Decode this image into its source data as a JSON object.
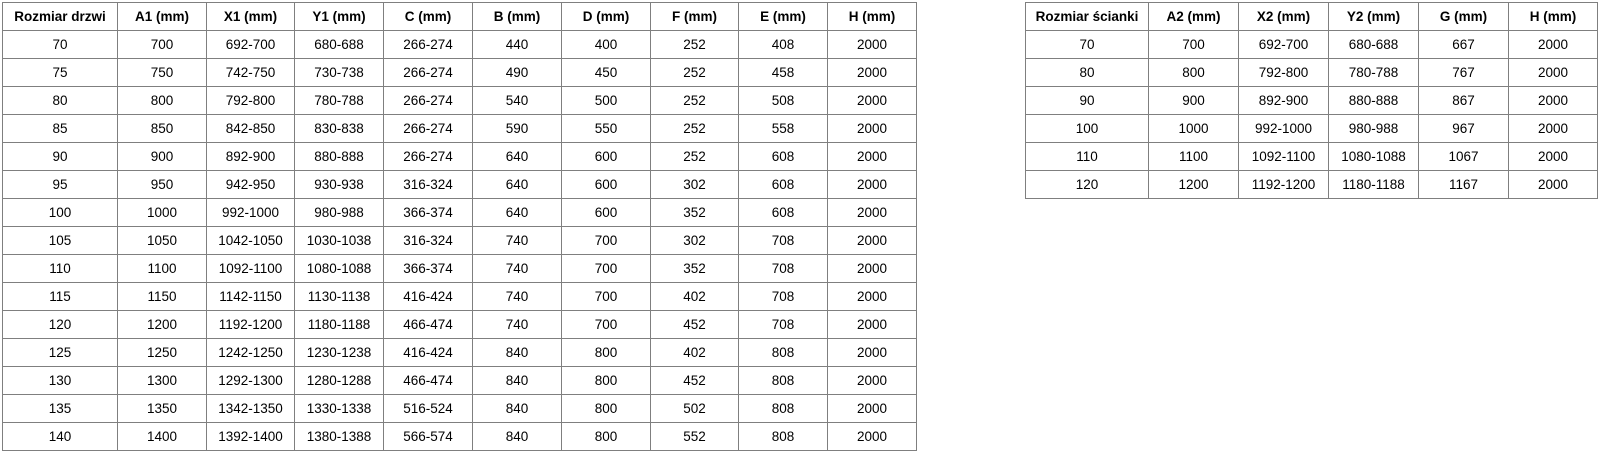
{
  "colors": {
    "background": "#ffffff",
    "border": "#7f7f7f",
    "text": "#000000"
  },
  "door_table": {
    "headers": [
      "Rozmiar drzwi",
      "A1 (mm)",
      "X1 (mm)",
      "Y1 (mm)",
      "C (mm)",
      "B (mm)",
      "D (mm)",
      "F (mm)",
      "E (mm)",
      "H (mm)"
    ],
    "rows": [
      [
        "70",
        "700",
        "692-700",
        "680-688",
        "266-274",
        "440",
        "400",
        "252",
        "408",
        "2000"
      ],
      [
        "75",
        "750",
        "742-750",
        "730-738",
        "266-274",
        "490",
        "450",
        "252",
        "458",
        "2000"
      ],
      [
        "80",
        "800",
        "792-800",
        "780-788",
        "266-274",
        "540",
        "500",
        "252",
        "508",
        "2000"
      ],
      [
        "85",
        "850",
        "842-850",
        "830-838",
        "266-274",
        "590",
        "550",
        "252",
        "558",
        "2000"
      ],
      [
        "90",
        "900",
        "892-900",
        "880-888",
        "266-274",
        "640",
        "600",
        "252",
        "608",
        "2000"
      ],
      [
        "95",
        "950",
        "942-950",
        "930-938",
        "316-324",
        "640",
        "600",
        "302",
        "608",
        "2000"
      ],
      [
        "100",
        "1000",
        "992-1000",
        "980-988",
        "366-374",
        "640",
        "600",
        "352",
        "608",
        "2000"
      ],
      [
        "105",
        "1050",
        "1042-1050",
        "1030-1038",
        "316-324",
        "740",
        "700",
        "302",
        "708",
        "2000"
      ],
      [
        "110",
        "1100",
        "1092-1100",
        "1080-1088",
        "366-374",
        "740",
        "700",
        "352",
        "708",
        "2000"
      ],
      [
        "115",
        "1150",
        "1142-1150",
        "1130-1138",
        "416-424",
        "740",
        "700",
        "402",
        "708",
        "2000"
      ],
      [
        "120",
        "1200",
        "1192-1200",
        "1180-1188",
        "466-474",
        "740",
        "700",
        "452",
        "708",
        "2000"
      ],
      [
        "125",
        "1250",
        "1242-1250",
        "1230-1238",
        "416-424",
        "840",
        "800",
        "402",
        "808",
        "2000"
      ],
      [
        "130",
        "1300",
        "1292-1300",
        "1280-1288",
        "466-474",
        "840",
        "800",
        "452",
        "808",
        "2000"
      ],
      [
        "135",
        "1350",
        "1342-1350",
        "1330-1338",
        "516-524",
        "840",
        "800",
        "502",
        "808",
        "2000"
      ],
      [
        "140",
        "1400",
        "1392-1400",
        "1380-1388",
        "566-574",
        "840",
        "800",
        "552",
        "808",
        "2000"
      ]
    ]
  },
  "wall_table": {
    "headers": [
      "Rozmiar ścianki",
      "A2 (mm)",
      "X2 (mm)",
      "Y2 (mm)",
      "G (mm)",
      "H (mm)"
    ],
    "rows": [
      [
        "70",
        "700",
        "692-700",
        "680-688",
        "667",
        "2000"
      ],
      [
        "80",
        "800",
        "792-800",
        "780-788",
        "767",
        "2000"
      ],
      [
        "90",
        "900",
        "892-900",
        "880-888",
        "867",
        "2000"
      ],
      [
        "100",
        "1000",
        "992-1000",
        "980-988",
        "967",
        "2000"
      ],
      [
        "110",
        "1100",
        "1092-1100",
        "1080-1088",
        "1067",
        "2000"
      ],
      [
        "120",
        "1200",
        "1192-1200",
        "1180-1188",
        "1167",
        "2000"
      ]
    ]
  }
}
